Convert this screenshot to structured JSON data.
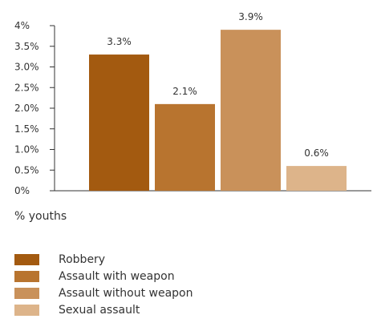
{
  "chart_data": {
    "type": "bar",
    "categories": [
      "Robbery",
      "Assault with weapon",
      "Assault without weapon",
      "Sexual assault"
    ],
    "values": [
      3.3,
      2.1,
      3.9,
      0.6
    ],
    "value_labels": [
      "3.3%",
      "2.1%",
      "3.9%",
      "0.6%"
    ],
    "colors": [
      "#a35a10",
      "#b8742f",
      "#c9915a",
      "#ddb48a"
    ],
    "ylim": [
      0,
      4
    ],
    "yticks": [
      0,
      0.5,
      1.0,
      1.5,
      2.0,
      2.5,
      3.0,
      3.5,
      4
    ],
    "ytick_labels": [
      "0%",
      "0.5%",
      "1.0%",
      "1.5%",
      "2.0%",
      "2.5%",
      "3.0%",
      "3.5%",
      "4%"
    ],
    "ylabel": "% youths",
    "grid": false,
    "legend_position": "bottom-left"
  },
  "legend": {
    "items": [
      {
        "label": "Robbery",
        "color": "#a35a10"
      },
      {
        "label": "Assault with weapon",
        "color": "#b8742f"
      },
      {
        "label": "Assault without weapon",
        "color": "#c9915a"
      },
      {
        "label": "Sexual assault",
        "color": "#ddb48a"
      }
    ]
  }
}
